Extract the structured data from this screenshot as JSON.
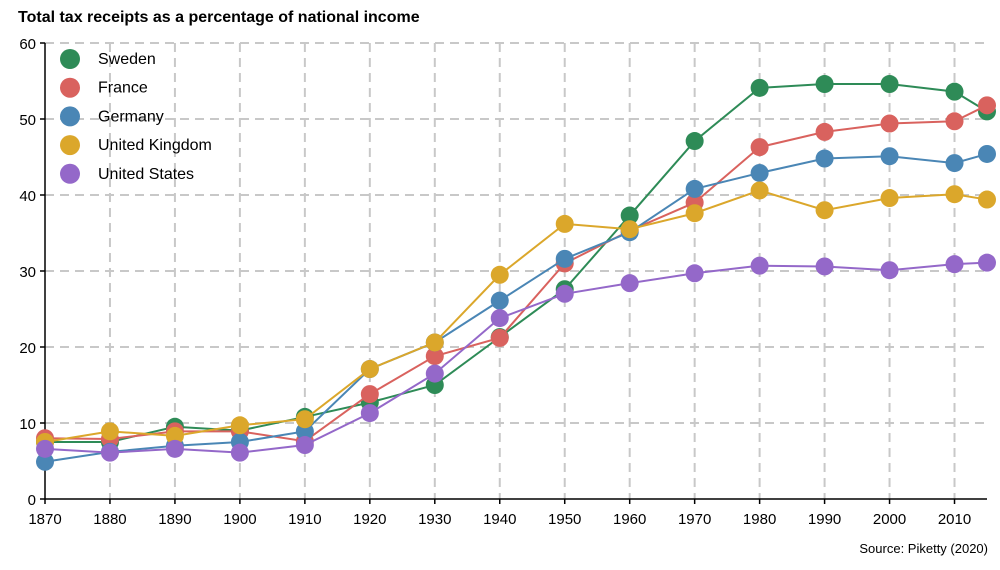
{
  "chart_data": {
    "type": "line",
    "title": "Total tax receipts as a percentage of national income",
    "source": "Source: Piketty (2020)",
    "xlabel": "",
    "ylabel": "",
    "xlim": [
      1870,
      2015
    ],
    "ylim": [
      0,
      60
    ],
    "x_ticks": [
      1870,
      1880,
      1890,
      1900,
      1910,
      1920,
      1930,
      1940,
      1950,
      1960,
      1970,
      1980,
      1990,
      2000,
      2010
    ],
    "y_ticks": [
      0,
      10,
      20,
      30,
      40,
      50,
      60
    ],
    "x_tick_labels": [
      "1870",
      "1880",
      "1890",
      "1900",
      "1910",
      "1920",
      "1930",
      "1940",
      "1950",
      "1960",
      "1970",
      "1980",
      "1990",
      "2000",
      "2010"
    ],
    "y_tick_labels": [
      "0",
      "10",
      "20",
      "30",
      "40",
      "50",
      "60"
    ],
    "grid": true,
    "grid_style": "dashed",
    "legend_position": "top-left",
    "x": [
      1870,
      1880,
      1890,
      1900,
      1910,
      1920,
      1930,
      1940,
      1950,
      1960,
      1970,
      1980,
      1990,
      2000,
      2010,
      2015
    ],
    "series": [
      {
        "name": "Sweden",
        "color": "#2e8b57",
        "values": [
          7.5,
          7.5,
          9.5,
          9.0,
          10.8,
          12.7,
          15.0,
          21.3,
          27.6,
          37.3,
          47.1,
          54.1,
          54.6,
          54.6,
          53.6,
          51.0
        ]
      },
      {
        "name": "France",
        "color": "#d9625e",
        "values": [
          8.0,
          7.9,
          8.9,
          8.9,
          7.6,
          13.8,
          18.8,
          21.2,
          31.0,
          35.3,
          39.0,
          46.3,
          48.3,
          49.4,
          49.7,
          51.8
        ]
      },
      {
        "name": "Germany",
        "color": "#4a86b5",
        "values": [
          4.9,
          6.2,
          7.0,
          7.5,
          8.9,
          17.1,
          20.6,
          26.1,
          31.6,
          35.1,
          40.8,
          42.9,
          44.8,
          45.1,
          44.2,
          45.4
        ]
      },
      {
        "name": "United Kingdom",
        "color": "#dba72b",
        "values": [
          7.5,
          8.9,
          8.3,
          9.7,
          10.5,
          17.1,
          20.6,
          29.5,
          36.2,
          35.5,
          37.6,
          40.6,
          38.0,
          39.6,
          40.1,
          39.4
        ]
      },
      {
        "name": "United States",
        "color": "#9468c9",
        "values": [
          6.6,
          6.1,
          6.6,
          6.1,
          7.1,
          11.3,
          16.5,
          23.8,
          27.0,
          28.4,
          29.7,
          30.7,
          30.6,
          30.1,
          30.9,
          31.1
        ]
      }
    ]
  }
}
